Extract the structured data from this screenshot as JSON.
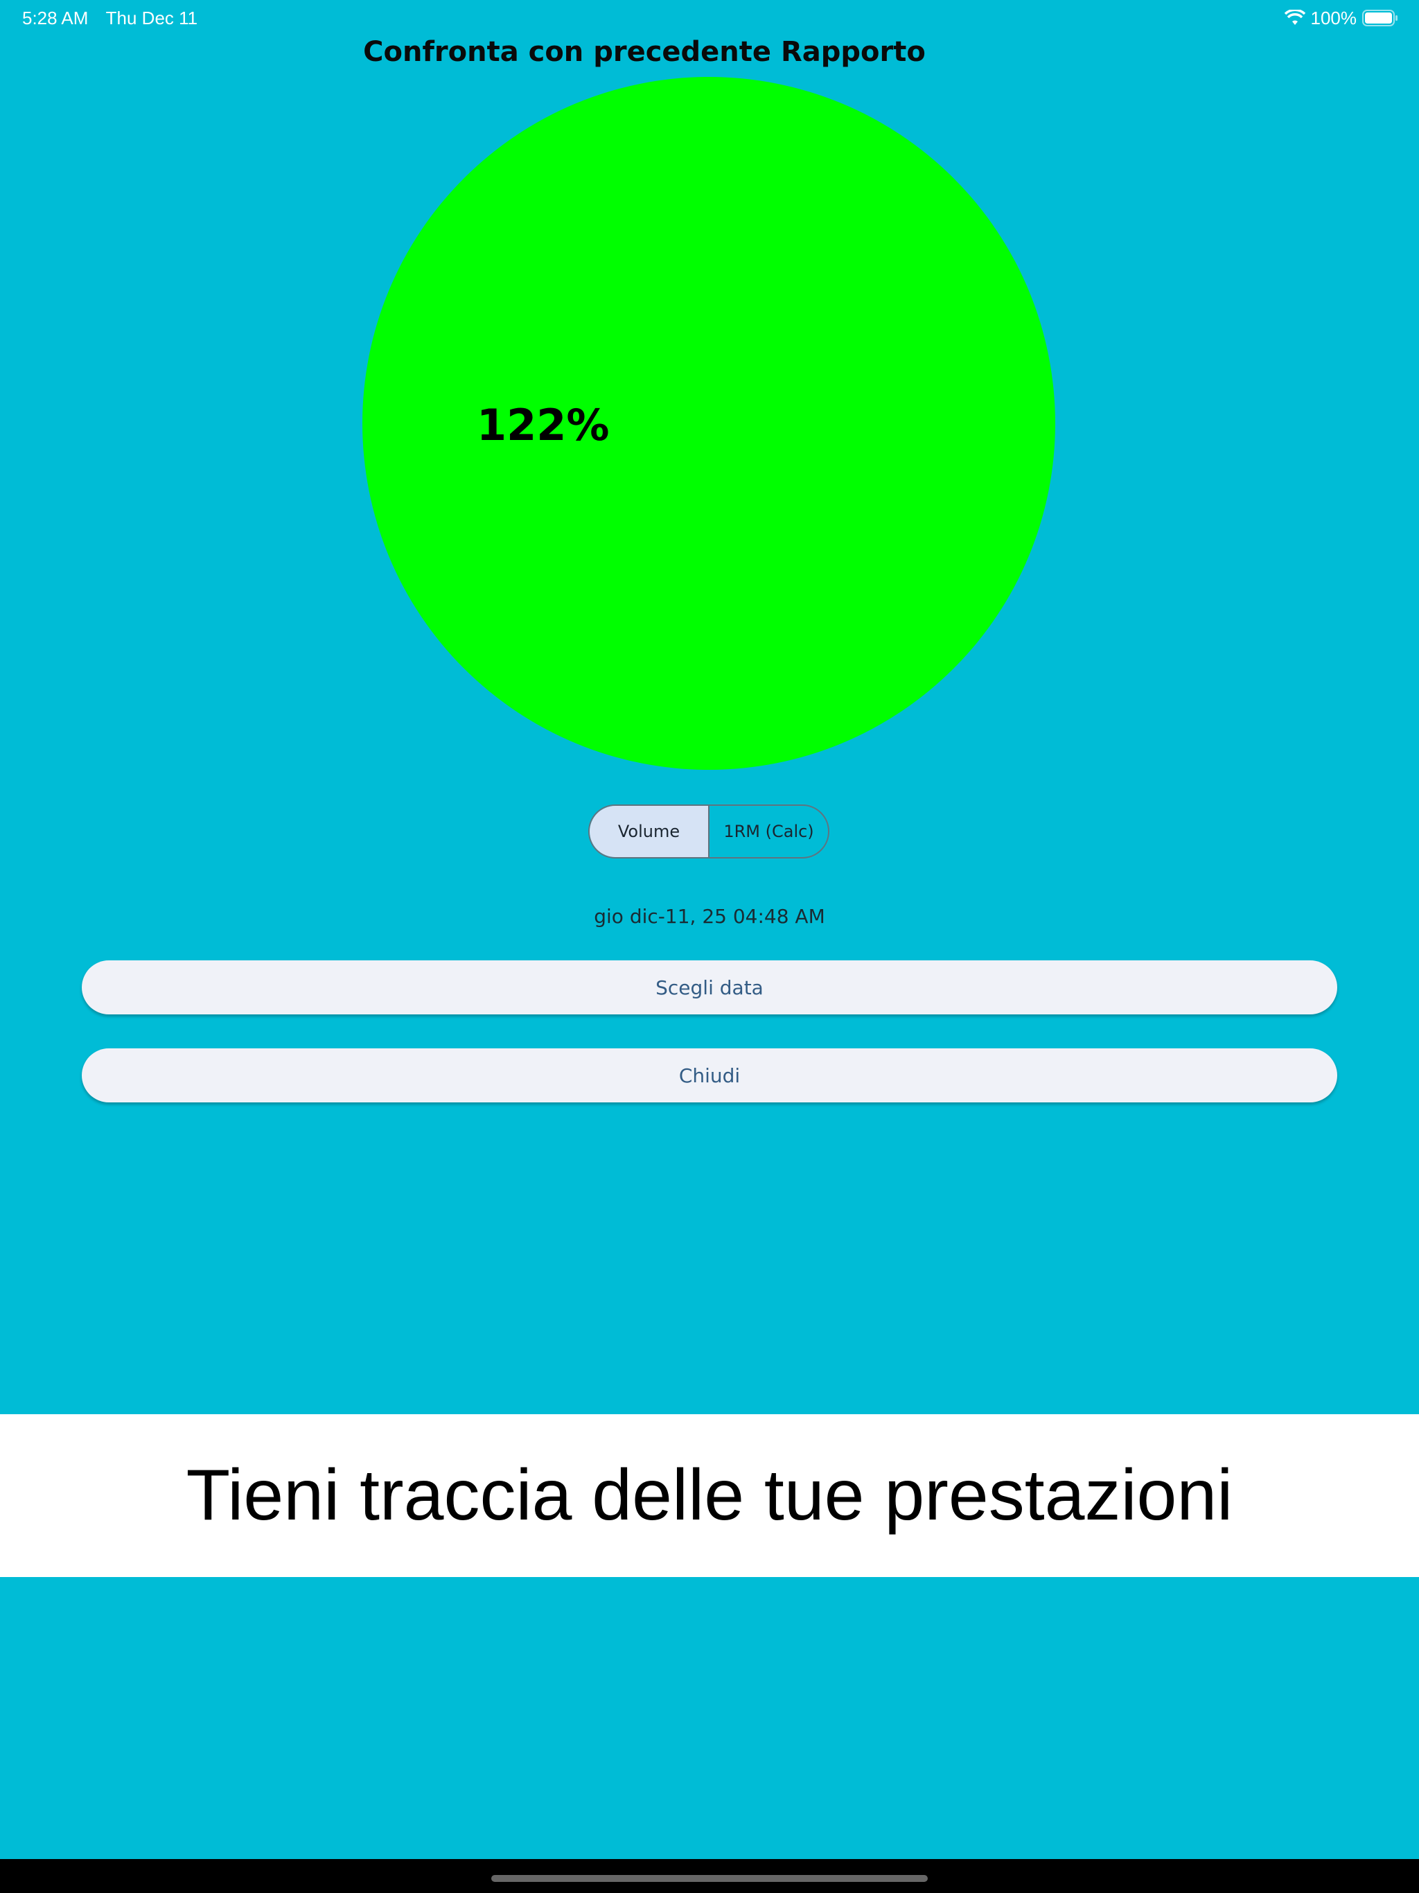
{
  "status_bar": {
    "time": "5:28 AM",
    "date": "Thu Dec 11",
    "battery": "100%",
    "icons": [
      "wifi-icon",
      "battery-icon"
    ]
  },
  "title": "Confronta con precedente Rapporto",
  "chart_data": {
    "type": "pie",
    "title": "Confronta con precedente Rapporto",
    "slices": [
      {
        "label": "122%",
        "value": 122,
        "color": "#00FF00"
      }
    ]
  },
  "toggle": {
    "options": [
      "Volume",
      "1RM (Calc)"
    ],
    "selected": "Volume"
  },
  "date_label": "gio dic-11, 25 04:48 AM",
  "buttons": {
    "choose_date": "Scegli data",
    "close": "Chiudi"
  },
  "banner": "Tieni traccia delle tue prestazioni",
  "colors": {
    "background": "#00BCD6",
    "pie": "#00FF00",
    "button_bg": "#F0F2F8",
    "button_text": "#335C85"
  }
}
